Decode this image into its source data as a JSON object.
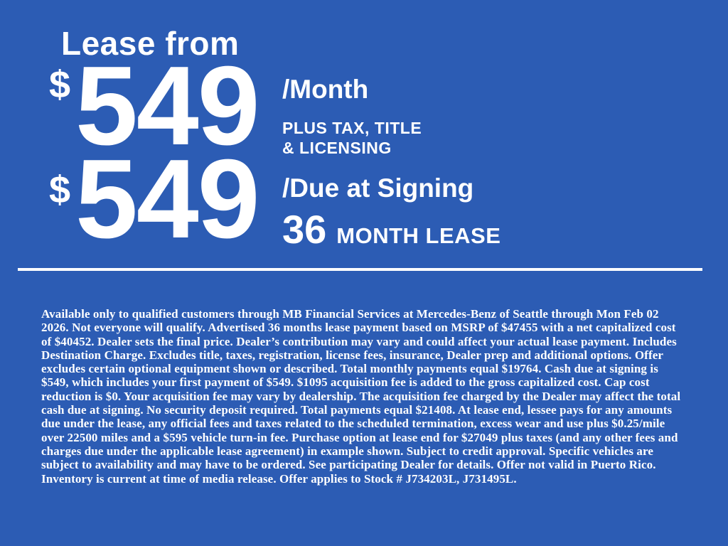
{
  "theme": {
    "background": "#2c5cb4",
    "text": "#ffffff"
  },
  "header": {
    "title": "Lease from"
  },
  "offer": {
    "monthly": {
      "currency": "$",
      "amount": "549",
      "per_label": "/Month",
      "note": "PLUS TAX, TITLE\n& LICENSING"
    },
    "due_at_signing": {
      "currency": "$",
      "amount": "549",
      "per_label": "/Due at Signing",
      "term_number": "36",
      "term_label": "MONTH LEASE"
    }
  },
  "disclaimer": "Available only to qualified customers through MB Financial Services at Mercedes-Benz of Seattle through Mon Feb 02 2026. Not everyone will qualify. Advertised 36 months lease payment based on MSRP of $47455 with a net capitalized cost of $40452. Dealer sets the final price. Dealer’s contribution may vary and could affect your actual lease payment. Includes Destination Charge. Excludes title, taxes, registration, license fees, insurance, Dealer prep and additional options. Offer excludes certain optional equipment shown or described. Total monthly payments equal $19764. Cash due at signing is $549, which includes your first payment of $549. $1095 acquisition fee is added to the gross capitalized cost. Cap cost reduction is $0. Your acquisition fee may vary by dealership. The acquisition fee charged by the Dealer may affect the total cash due at signing. No security deposit required. Total payments equal $21408. At lease end, lessee pays for any amounts due under the lease, any official fees and taxes related to the scheduled termination, excess wear and use plus $0.25/mile over 22500 miles and a $595 vehicle turn-in fee. Purchase option at lease end for $27049 plus taxes (and any other fees and charges due under the applicable lease agreement) in example shown. Subject to credit approval. Specific vehicles are subject to availability and may have to be ordered. See participating Dealer for details. Offer not valid in Puerto Rico. Inventory is current at time of media release. Offer applies to Stock # J734203L, J731495L."
}
